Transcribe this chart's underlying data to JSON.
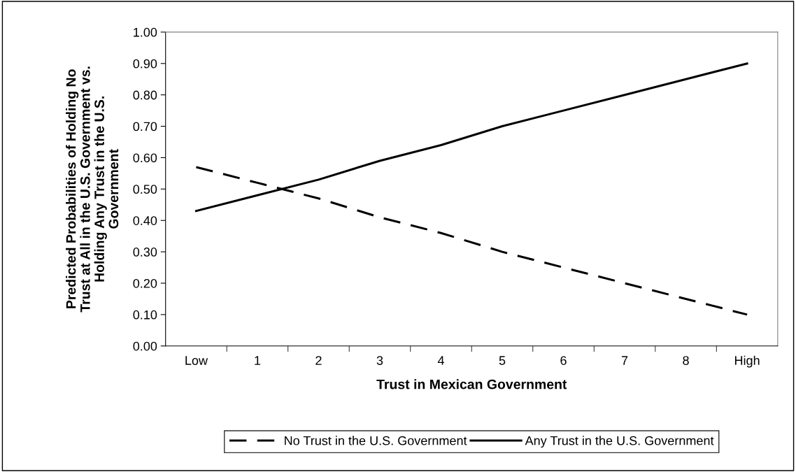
{
  "chart_data": {
    "type": "line",
    "xlabel": "Trust in Mexican Government",
    "ylabel": "Predicted Probabilities of Holding No\nTrust at All in the U.S. Government vs.\nHolding Any Trust in the U.S.\nGovernment",
    "categories": [
      "Low",
      "1",
      "2",
      "3",
      "4",
      "5",
      "6",
      "7",
      "8",
      "High"
    ],
    "series": [
      {
        "name": "No Trust in the U.S. Government",
        "color": "#000000",
        "line_style": "dashed",
        "values": [
          0.57,
          0.52,
          0.47,
          0.41,
          0.36,
          0.3,
          0.25,
          0.2,
          0.15,
          0.1
        ]
      },
      {
        "name": "Any Trust in the U.S. Government",
        "color": "#000000",
        "line_style": "solid",
        "values": [
          0.43,
          0.48,
          0.53,
          0.59,
          0.64,
          0.7,
          0.75,
          0.8,
          0.85,
          0.9
        ]
      }
    ],
    "ylim": [
      0,
      1
    ],
    "yticks": [
      {
        "value": 0,
        "label": "0.00"
      },
      {
        "value": 0.1,
        "label": "0.10"
      },
      {
        "value": 0.2,
        "label": "0.20"
      },
      {
        "value": 0.3,
        "label": "0.30"
      },
      {
        "value": 0.4,
        "label": "0.40"
      },
      {
        "value": 0.5,
        "label": "0.50"
      },
      {
        "value": 0.6,
        "label": "0.60"
      },
      {
        "value": 0.7,
        "label": "0.70"
      },
      {
        "value": 0.8,
        "label": "0.80"
      },
      {
        "value": 0.9,
        "label": "0.90"
      },
      {
        "value": 1,
        "label": "1.00"
      }
    ],
    "grid": false,
    "legend": "bottom",
    "marker": "none"
  }
}
